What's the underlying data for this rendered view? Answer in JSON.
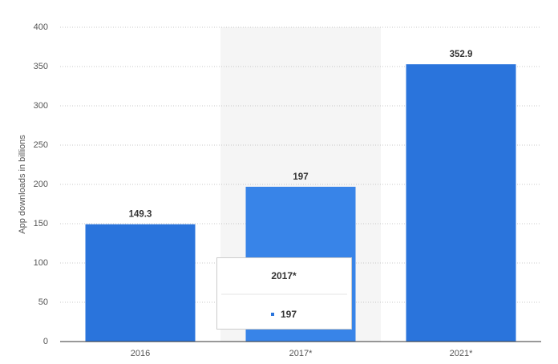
{
  "chart_data": {
    "type": "bar",
    "y_axis_label": "App downloads in billions",
    "categories": [
      "2016",
      "2017*",
      "2021*"
    ],
    "values": [
      149.3,
      197,
      352.9
    ],
    "color": "#2a74dc",
    "ylim": [
      0,
      400
    ],
    "yticks": [
      0,
      50,
      100,
      150,
      200,
      250,
      300,
      350,
      400
    ],
    "grid": true
  }
}
